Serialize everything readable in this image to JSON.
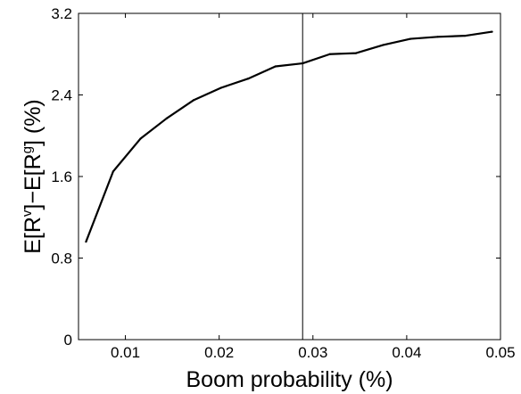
{
  "chart_data": {
    "type": "line",
    "title": "",
    "xlabel": "Boom probability (%)",
    "ylabel": {
      "parts": [
        "E[R",
        "v",
        "]−E[R",
        "g",
        "] (%)"
      ]
    },
    "xlim": [
      0.005,
      0.05
    ],
    "ylim": [
      0,
      3.2
    ],
    "xticks": [
      0.01,
      0.02,
      0.03,
      0.04,
      0.05
    ],
    "xtick_labels": [
      "0.01",
      "0.02",
      "0.03",
      "0.04",
      "0.05"
    ],
    "yticks": [
      0,
      0.8,
      1.6,
      2.4,
      3.2
    ],
    "ytick_labels": [
      "0",
      "0.8",
      "1.6",
      "2.4",
      "3.2"
    ],
    "grid": false,
    "reference_line": {
      "orientation": "vertical",
      "x": 0.0289
    },
    "series": [
      {
        "color": "#000000",
        "x": [
          0.0058,
          0.0087,
          0.0116,
          0.0144,
          0.0173,
          0.0202,
          0.0231,
          0.026,
          0.0289,
          0.0318,
          0.0346,
          0.0375,
          0.0404,
          0.0433,
          0.0462,
          0.0491
        ],
        "y": [
          0.96,
          1.65,
          1.97,
          2.17,
          2.35,
          2.47,
          2.56,
          2.68,
          2.71,
          2.8,
          2.81,
          2.89,
          2.95,
          2.97,
          2.98,
          3.02
        ]
      }
    ]
  }
}
